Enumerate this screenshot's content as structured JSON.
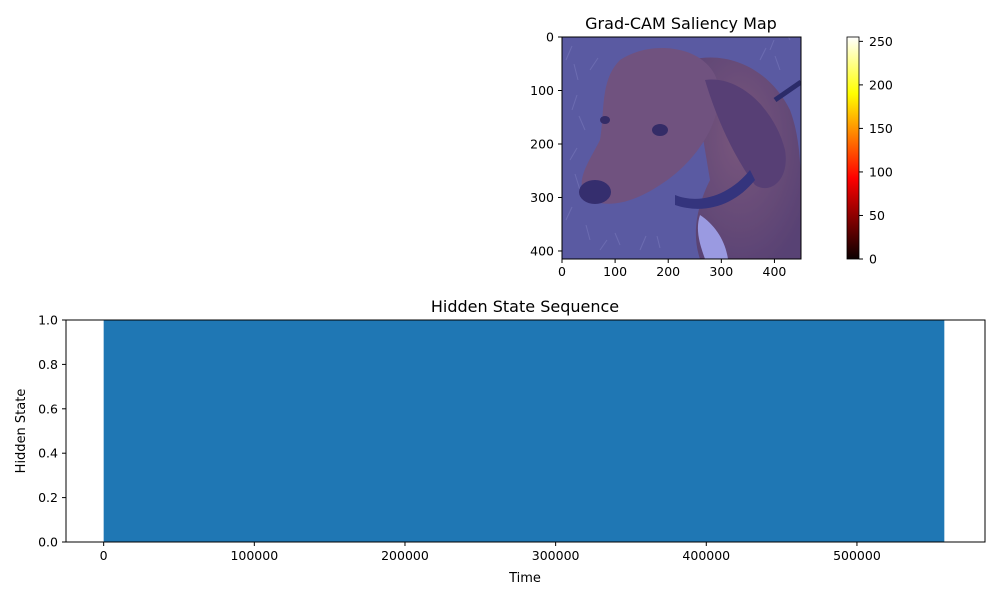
{
  "chart_data": [
    {
      "type": "heatmap",
      "title": "Grad-CAM Saliency Map",
      "description_image": "photo of a brown dog (dachshund) on grass, overlaid with a blue tint",
      "xlim": [
        0,
        450
      ],
      "ylim": [
        415,
        0
      ],
      "xticks": [
        0,
        100,
        200,
        300,
        400
      ],
      "yticks": [
        0,
        100,
        200,
        300,
        400
      ],
      "colorbar": {
        "colormap": "hot",
        "range": [
          0,
          255
        ],
        "ticks": [
          0,
          50,
          100,
          150,
          200,
          250
        ]
      },
      "overlay_color": "#5050e6"
    },
    {
      "type": "bar",
      "title": "Hidden State Sequence",
      "xlabel": "Time",
      "ylabel": "Hidden State",
      "series": [
        {
          "x_start": 0,
          "x_end": 558000,
          "value": 1.0,
          "color": "#1f77b4"
        }
      ],
      "xlim": [
        -25000,
        585000
      ],
      "ylim": [
        0.0,
        1.0
      ],
      "xticks": [
        0,
        100000,
        200000,
        300000,
        400000,
        500000
      ],
      "yticks": [
        "0.0",
        "0.2",
        "0.4",
        "0.6",
        "0.8",
        "1.0"
      ]
    }
  ]
}
